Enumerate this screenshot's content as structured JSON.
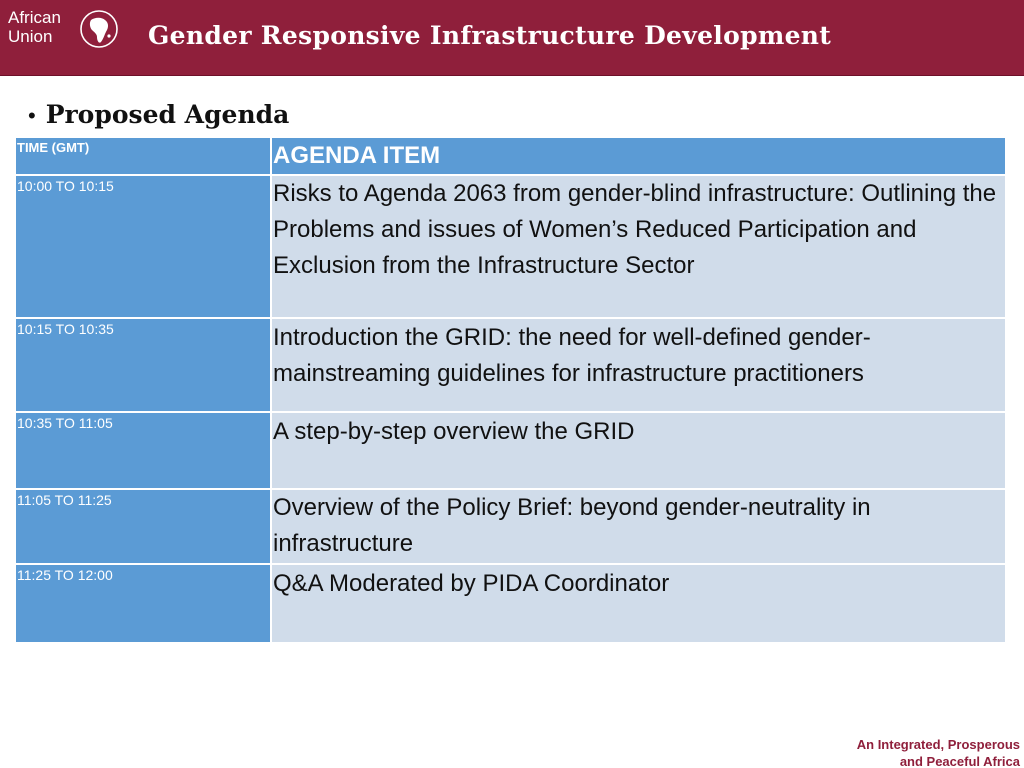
{
  "header": {
    "logo_line1": "African",
    "logo_line2": "Union",
    "title": "Gender Responsive Infrastructure Development"
  },
  "section": {
    "heading": "Proposed Agenda"
  },
  "agenda": {
    "columns": [
      "TIME (GMT)",
      "AGENDA ITEM"
    ],
    "rows": [
      {
        "time": "10:00 TO 10:15",
        "item": "Risks to Agenda 2063 from gender-blind infrastructure: Outlining the Problems and issues of Women’s Reduced Participation and Exclusion from the Infrastructure Sector"
      },
      {
        "time": "10:15 TO 10:35",
        "item": "Introduction the GRID: the need for well-defined gender-mainstreaming guidelines for infrastructure practitioners"
      },
      {
        "time": "10:35 TO 11:05",
        "item": "A step-by-step overview the GRID"
      },
      {
        "time": "11:05 TO 11:25",
        "item": "Overview of the Policy Brief: beyond gender-neutrality in infrastructure"
      },
      {
        "time": "11:25 TO 12:00",
        "item": "Q&A Moderated by PIDA Coordinator"
      }
    ]
  },
  "footer": {
    "tagline_line1": "An Integrated, Prosperous",
    "tagline_line2": "and Peaceful Africa"
  },
  "colors": {
    "brand": "#8f1f3b",
    "table_header": "#5b9bd5",
    "table_cell": "#d0dcea"
  }
}
